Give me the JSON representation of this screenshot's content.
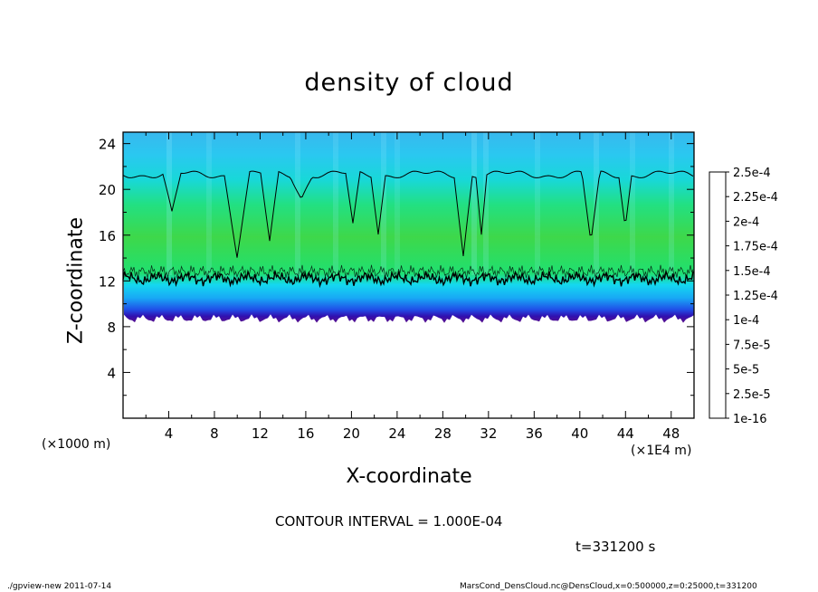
{
  "chart_data": {
    "type": "heatmap",
    "title": "density of cloud",
    "xlabel": "X-coordinate",
    "ylabel": "Z-coordinate",
    "x_unit_label": "(×1E4 m)",
    "z_unit_label": "(×1000 m)",
    "xlim": [
      0,
      50
    ],
    "ylim": [
      0,
      25
    ],
    "x_ticks": [
      "4",
      "8",
      "12",
      "16",
      "20",
      "24",
      "28",
      "32",
      "36",
      "40",
      "44",
      "48"
    ],
    "y_ticks": [
      "4",
      "8",
      "12",
      "16",
      "20",
      "24"
    ],
    "colorbar": {
      "labels": [
        "1e-16",
        "2.5e-5",
        "5e-5",
        "7.5e-5",
        "1e-4",
        "1.25e-4",
        "1.5e-4",
        "1.75e-4",
        "2e-4",
        "2.25e-4",
        "2.5e-4"
      ],
      "colors": [
        "#5c0f8b",
        "#1515c8",
        "#2a5ef0",
        "#1fa0f5",
        "#15d8f0",
        "#22e074",
        "#30d850",
        "#70e01a",
        "#b0e010",
        "#f0d000",
        "#f08000",
        "#f04010",
        "#f05050",
        "#f59090",
        "#f8c0c0"
      ]
    },
    "contour_interval": "CONTOUR INTERVAL = 1.000E-04",
    "cloud_layer": {
      "z_bottom": 8.7,
      "z_contour": 12.2,
      "z_top_contour": 21.3,
      "z_top": 25.0
    },
    "time_label": "t=331200 s"
  },
  "footer": {
    "left": "./gpview-new   2011-07-14",
    "right": "MarsCond_DensCloud.nc@DensCloud,x=0:500000,z=0:25000,t=331200"
  }
}
